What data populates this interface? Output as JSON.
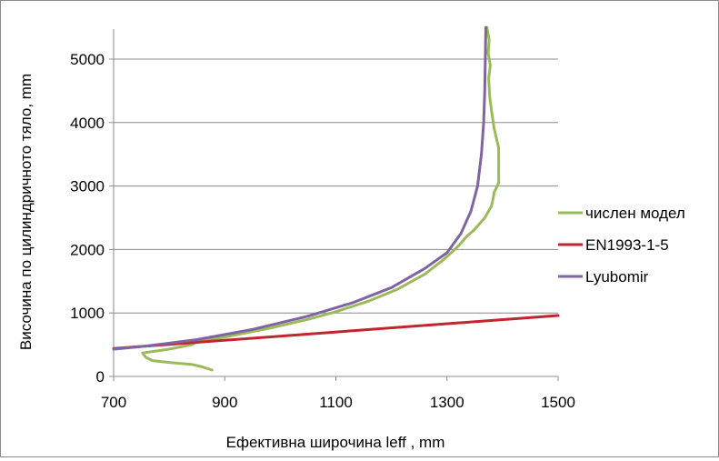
{
  "chart_data": {
    "type": "line",
    "title": "",
    "xlabel": "Ефективна широчина leff , mm",
    "ylabel": "Височина по цилиндричното тяло, mm",
    "xlim": [
      700,
      1500
    ],
    "ylim": [
      0,
      5500
    ],
    "xticks": [
      700,
      900,
      1100,
      1300,
      1500
    ],
    "yticks": [
      0,
      1000,
      2000,
      3000,
      4000,
      5000
    ],
    "grid": "horizontal",
    "legend_position": "right",
    "series": [
      {
        "name": "числен модел",
        "color": "#9bbb59",
        "points": [
          [
            877,
            100
          ],
          [
            860,
            150
          ],
          [
            840,
            190
          ],
          [
            800,
            220
          ],
          [
            770,
            250
          ],
          [
            758,
            300
          ],
          [
            752,
            370
          ],
          [
            800,
            430
          ],
          [
            840,
            500
          ],
          [
            850,
            540
          ],
          [
            900,
            620
          ],
          [
            980,
            760
          ],
          [
            1050,
            900
          ],
          [
            1100,
            1020
          ],
          [
            1160,
            1190
          ],
          [
            1210,
            1370
          ],
          [
            1260,
            1610
          ],
          [
            1295,
            1850
          ],
          [
            1320,
            2050
          ],
          [
            1335,
            2200
          ],
          [
            1350,
            2320
          ],
          [
            1368,
            2500
          ],
          [
            1380,
            2680
          ],
          [
            1383,
            2800
          ],
          [
            1385,
            2900
          ],
          [
            1393,
            3050
          ],
          [
            1393,
            3600
          ],
          [
            1385,
            3900
          ],
          [
            1380,
            4200
          ],
          [
            1377,
            4400
          ],
          [
            1375,
            4700
          ],
          [
            1378,
            4900
          ],
          [
            1374,
            5100
          ],
          [
            1376,
            5300
          ],
          [
            1372,
            5500
          ]
        ]
      },
      {
        "name": "EN1993-1-5",
        "color": "#c0262d",
        "points": [
          [
            700,
            440
          ],
          [
            1500,
            960
          ]
        ]
      },
      {
        "name": "Lyubomir",
        "color": "#8064a2",
        "points": [
          [
            700,
            430
          ],
          [
            760,
            480
          ],
          [
            850,
            580
          ],
          [
            950,
            740
          ],
          [
            1050,
            950
          ],
          [
            1130,
            1160
          ],
          [
            1200,
            1400
          ],
          [
            1260,
            1700
          ],
          [
            1300,
            1950
          ],
          [
            1325,
            2250
          ],
          [
            1343,
            2600
          ],
          [
            1355,
            3000
          ],
          [
            1362,
            3500
          ],
          [
            1366,
            4000
          ],
          [
            1368,
            4500
          ],
          [
            1369,
            5000
          ],
          [
            1370,
            5500
          ]
        ]
      }
    ]
  }
}
